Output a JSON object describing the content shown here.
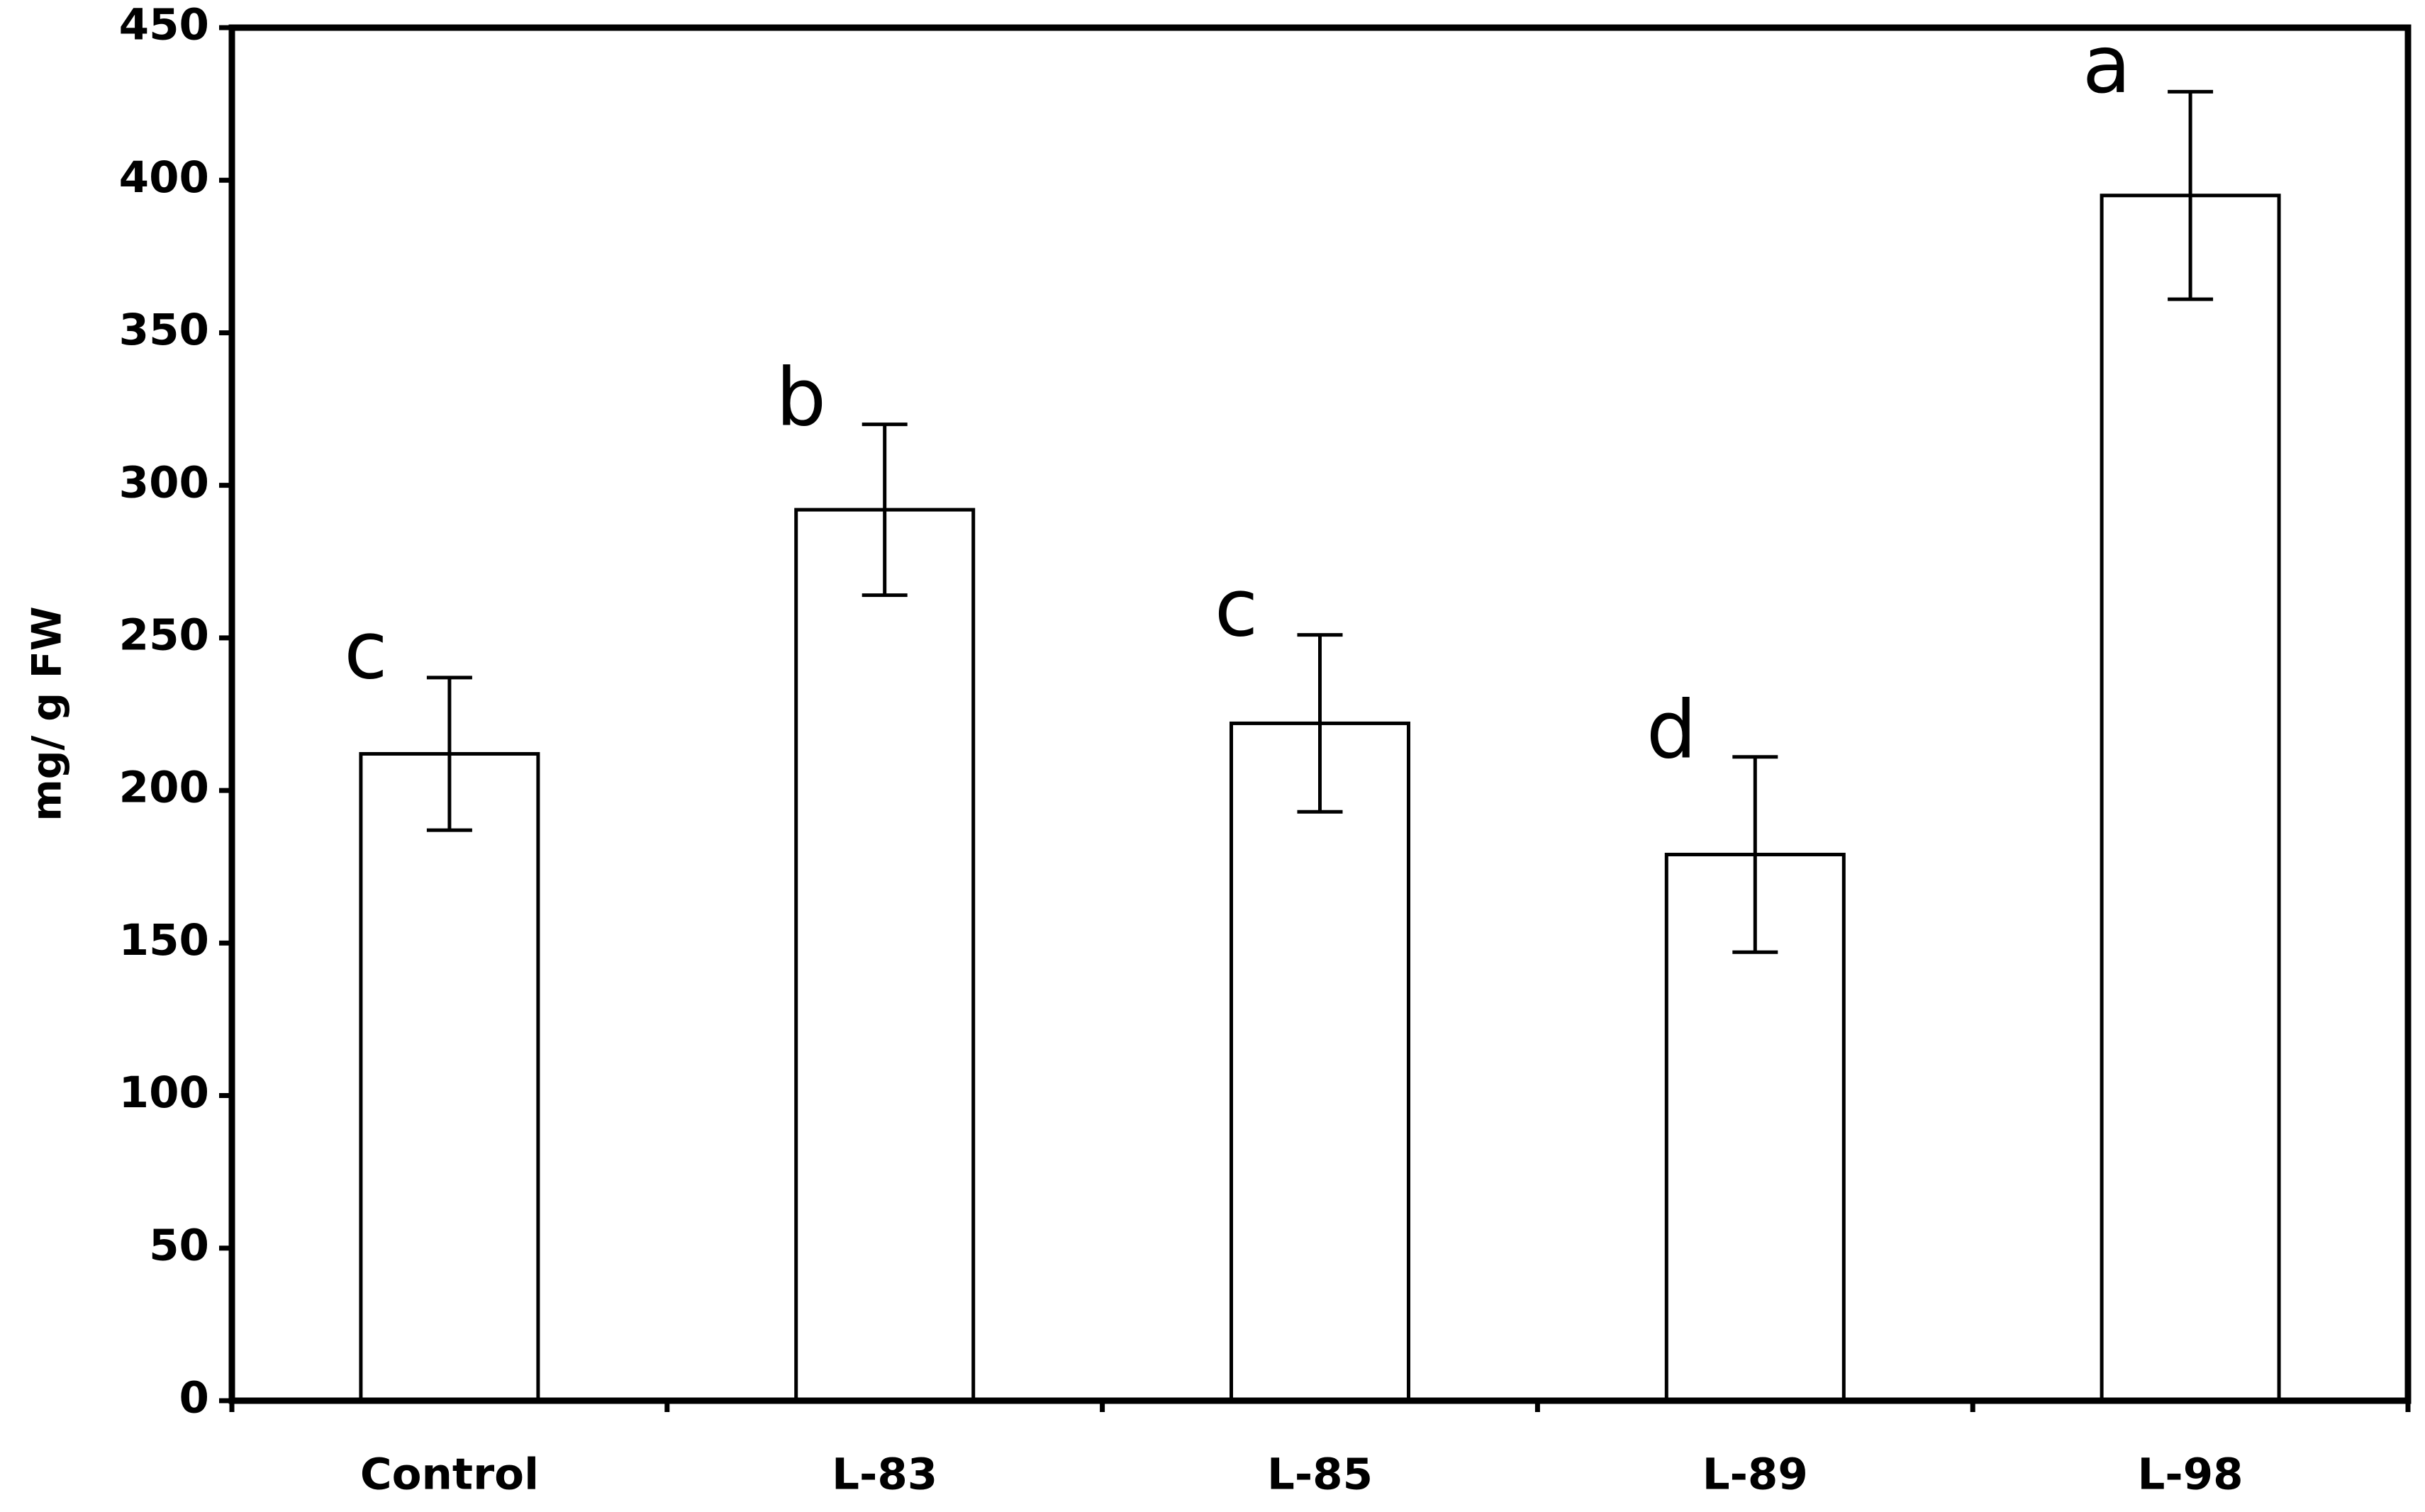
{
  "chart_data": {
    "type": "bar",
    "y_label": "mg/ g FW",
    "categories": [
      "Control",
      "L-83",
      "L-85",
      "L-89",
      "L-98"
    ],
    "values": [
      212,
      292,
      222,
      179,
      395
    ],
    "errors": [
      25,
      28,
      29,
      32,
      34
    ],
    "significance": [
      "c",
      "b",
      "c",
      "d",
      "a"
    ],
    "color": "#ffffff",
    "ylim": [
      0,
      450
    ],
    "yticks": [
      0,
      50,
      100,
      150,
      200,
      250,
      300,
      350,
      400,
      450
    ],
    "grid": false
  }
}
